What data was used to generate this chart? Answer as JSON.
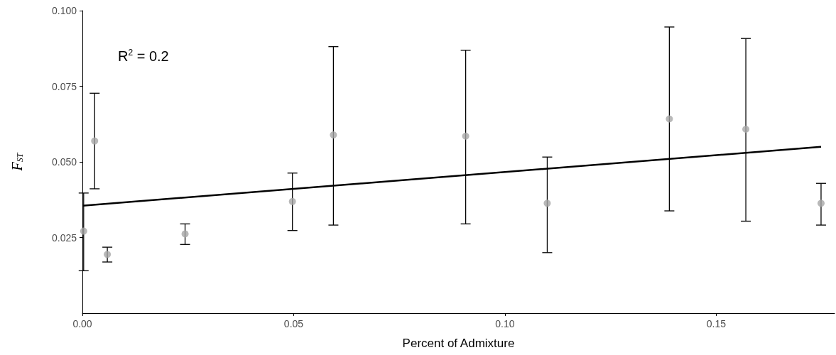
{
  "chart_data": {
    "type": "scatter",
    "xlabel": "Percent of Admixture",
    "ylabel": "F$_{ST}$",
    "annotations": [
      "R$^{2}$ = 0.2"
    ],
    "xlim": [
      0,
      0.178
    ],
    "xticks": [
      {
        "value": 0,
        "label": "0.00"
      },
      {
        "value": 0.05,
        "label": "0.05"
      },
      {
        "value": 0.1,
        "label": "0.10"
      },
      {
        "value": 0.15,
        "label": "0.15"
      }
    ],
    "ylim": [
      0,
      0.1
    ],
    "yticks": [
      {
        "value": 0.025,
        "label": "0.025"
      },
      {
        "value": 0.05,
        "label": "0.050"
      },
      {
        "value": 0.075,
        "label": "0.075"
      },
      {
        "value": 0.1,
        "label": "0.100"
      }
    ],
    "grid": false,
    "marker": "circle",
    "series": [
      {
        "color": "#a6a6a6",
        "x": [
          0.0003,
          0.0029,
          0.0059,
          0.0243,
          0.0497,
          0.0594,
          0.0907,
          0.11,
          0.1389,
          0.157,
          0.1748
        ],
        "values": [
          0.0271,
          0.0569,
          0.0194,
          0.0262,
          0.0369,
          0.0589,
          0.0585,
          0.0363,
          0.0642,
          0.0608,
          0.0363
        ],
        "errors": [
          [
            0.014,
            0.0397
          ],
          [
            0.0411,
            0.0727
          ],
          [
            0.0169,
            0.0218
          ],
          [
            0.0227,
            0.0295
          ],
          [
            0.0273,
            0.0463
          ],
          [
            0.0291,
            0.0881
          ],
          [
            0.0295,
            0.0869
          ],
          [
            0.02,
            0.0516
          ],
          [
            0.0338,
            0.0946
          ],
          [
            0.0304,
            0.0908
          ],
          [
            0.0291,
            0.0429
          ]
        ]
      },
      {
        "type": "line",
        "color": "#000000",
        "marker": "none",
        "x": [
          0,
          0.1748
        ],
        "values": [
          0.0355,
          0.055
        ]
      }
    ]
  }
}
